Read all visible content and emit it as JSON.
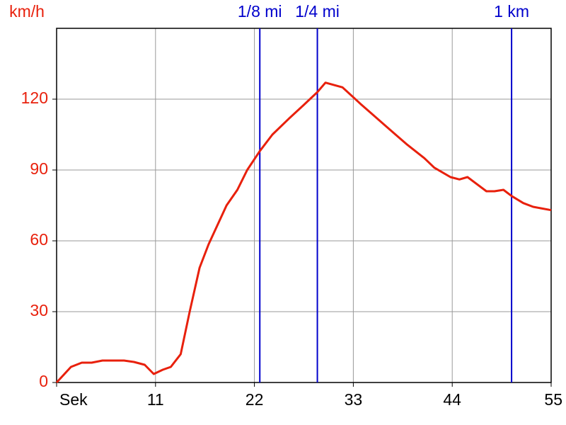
{
  "chart_data": {
    "type": "line",
    "y_label": "km/h",
    "x": [
      0,
      1.6,
      2.8,
      3.9,
      5.1,
      7.5,
      8.6,
      9.8,
      10.8,
      11.8,
      12.7,
      13.8,
      14.8,
      15.9,
      16.9,
      18.9,
      20.1,
      21.2,
      22.6,
      24.0,
      25.9,
      27.5,
      29.0,
      29.9,
      31.8,
      33.8,
      35.0,
      36.5,
      37.7,
      38.9,
      40.9,
      42.0,
      43.8,
      44.8,
      45.7,
      47.8,
      48.7,
      49.7,
      50.6,
      51.9,
      53.0,
      55.0
    ],
    "values": [
      0,
      6.6,
      8.4,
      8.4,
      9.3,
      9.3,
      8.7,
      7.5,
      3.6,
      5.4,
      6.6,
      12,
      30,
      48.6,
      58.5,
      75,
      81.6,
      90,
      98,
      105,
      112,
      117.6,
      123,
      127,
      125,
      118,
      114,
      109,
      105,
      101,
      95,
      91,
      87,
      86,
      87,
      81,
      81,
      81.6,
      79,
      76,
      74.4,
      73
    ],
    "color": "#e8200c",
    "xlim": [
      0,
      55
    ],
    "ylim": [
      0,
      150
    ],
    "xticks": [
      {
        "value": 0,
        "label": "Sek"
      },
      11,
      22,
      33,
      44,
      55
    ],
    "yticks": [
      0,
      30,
      60,
      90,
      120
    ],
    "grid": true,
    "markers": [
      {
        "label": "1/8 mi",
        "value": 22.6
      },
      {
        "label": "1/4 mi",
        "value": 29.0
      },
      {
        "label": "1 km",
        "value": 50.6
      }
    ],
    "marker_color": "#0000cc"
  }
}
